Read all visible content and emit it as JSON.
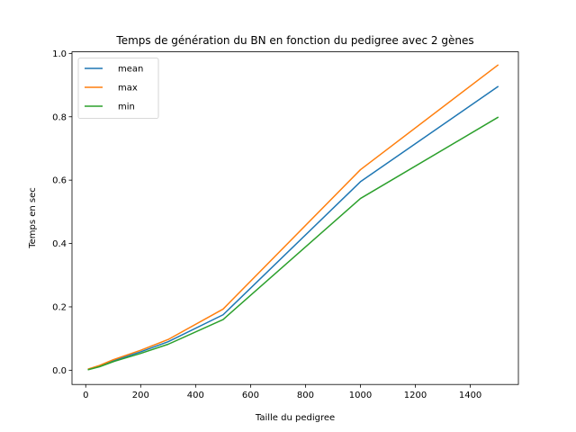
{
  "chart_data": {
    "type": "line",
    "title": "Temps de génération du BN en fonction du pedigree avec 2 gènes",
    "xlabel": "Taille du pedigree",
    "ylabel": "Temps en sec",
    "xlim": [
      -50,
      1575
    ],
    "ylim": [
      -0.045,
      1.005
    ],
    "xticks": [
      0,
      200,
      400,
      600,
      800,
      1000,
      1200,
      1400
    ],
    "yticks": [
      0.0,
      0.2,
      0.4,
      0.6,
      0.8,
      1.0
    ],
    "xtick_labels": [
      "0",
      "200",
      "400",
      "600",
      "800",
      "1000",
      "1200",
      "1400"
    ],
    "ytick_labels": [
      "0.0",
      "0.2",
      "0.4",
      "0.6",
      "0.8",
      "1.0"
    ],
    "grid": false,
    "legend_position": "top-left",
    "x": [
      10,
      50,
      100,
      200,
      300,
      500,
      1000,
      1500
    ],
    "series": [
      {
        "name": "mean",
        "color": "#1f77b4",
        "values": [
          0.003,
          0.013,
          0.03,
          0.058,
          0.09,
          0.175,
          0.595,
          0.895
        ]
      },
      {
        "name": "max",
        "color": "#ff7f0e",
        "values": [
          0.004,
          0.015,
          0.033,
          0.063,
          0.097,
          0.193,
          0.633,
          0.963
        ]
      },
      {
        "name": "min",
        "color": "#2ca02c",
        "values": [
          0.002,
          0.011,
          0.027,
          0.053,
          0.082,
          0.16,
          0.542,
          0.798
        ]
      }
    ]
  }
}
